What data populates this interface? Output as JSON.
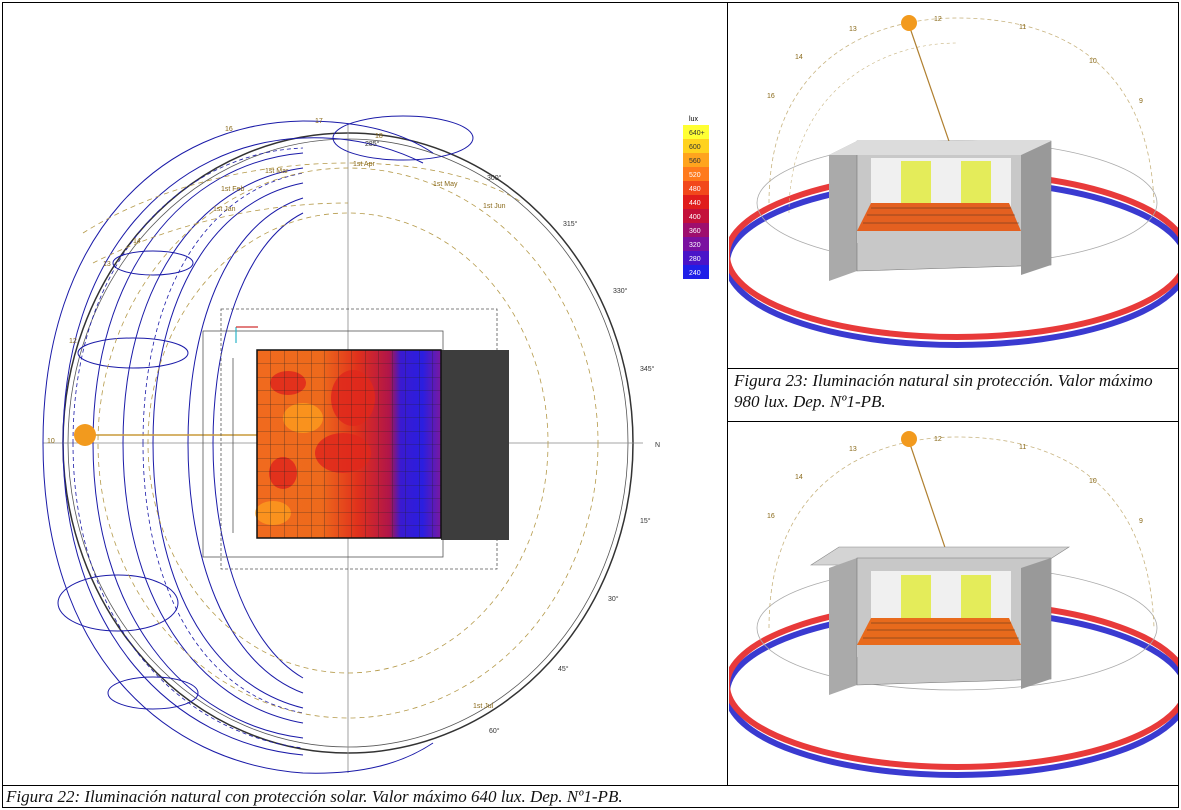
{
  "main_figure": {
    "legend": {
      "unit": "lux",
      "entries": [
        {
          "label": "640+",
          "color": "#ffff33"
        },
        {
          "label": "600",
          "color": "#ffd21f"
        },
        {
          "label": "560",
          "color": "#ffa41e"
        },
        {
          "label": "520",
          "color": "#ff7a1c"
        },
        {
          "label": "480",
          "color": "#f2481b"
        },
        {
          "label": "440",
          "color": "#e01c1c"
        },
        {
          "label": "400",
          "color": "#c4103a"
        },
        {
          "label": "360",
          "color": "#9e0e6e"
        },
        {
          "label": "320",
          "color": "#7a10a0"
        },
        {
          "label": "280",
          "color": "#4a14c8"
        },
        {
          "label": "240",
          "color": "#1f1fe8"
        }
      ]
    },
    "azimuth_labels": [
      "285°",
      "300°",
      "315°",
      "330°",
      "345°",
      "N",
      "15°",
      "30°",
      "45°",
      "60°"
    ],
    "month_labels": [
      "1st Jan",
      "1st Feb",
      "1st Mar",
      "1st Apr",
      "1st May",
      "1st Jun",
      "1st Jul"
    ],
    "hour_labels": [
      "16",
      "17",
      "18",
      "14",
      "13",
      "12",
      "10"
    ]
  },
  "render_hours": [
    "13",
    "12",
    "11",
    "10",
    "9",
    "14",
    "16"
  ],
  "captions": {
    "fig22": "Figura 22: Iluminación natural con protección solar. Valor máximo 640 lux. Dep. Nº1-PB.",
    "fig23": "Figura 23: Iluminación natural sin protección. Valor máximo 980 lux. Dep. Nº1-PB."
  }
}
